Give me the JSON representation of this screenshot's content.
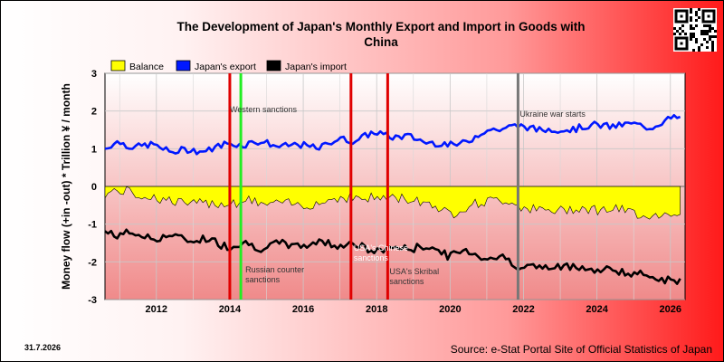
{
  "title_line1": "The Development of Japan's Monthly Export and Import in Goods with",
  "title_line2": "China",
  "date_stamp": "31.7.2026",
  "source": "Source: e-Stat Portal Site of Official Statistics of Japan",
  "qr_code": "qr-code-icon",
  "colors": {
    "balance": "#ffff00",
    "export": "#0018ff",
    "import": "#000000",
    "sanction_line": "#e00000",
    "western_line": "#22ee22",
    "war_line": "#777777",
    "plot_top": "#ffffff",
    "plot_bottom": "#f08a8a"
  },
  "chart_data": {
    "type": "line",
    "title": "The Development of Japan's Monthly Export and Import in Goods with China",
    "ylabel": "Money flow (+in -out) * Trillion ¥ / month",
    "xlabel": "",
    "xlim": [
      2010.6,
      2026.4
    ],
    "ylim": [
      -3,
      3
    ],
    "yticks": [
      3,
      2,
      1,
      0,
      -1,
      -2,
      -3
    ],
    "xticks": [
      2012,
      2014,
      2016,
      2018,
      2020,
      2022,
      2024,
      2026
    ],
    "grid": true,
    "legend_position": "top-left",
    "legend": [
      "Balance",
      "Japan's export",
      "Japan's import"
    ],
    "series": [
      {
        "name": "Japan's export",
        "keyframes": [
          [
            2010.6,
            1.0
          ],
          [
            2011.0,
            1.15
          ],
          [
            2011.5,
            1.08
          ],
          [
            2012.0,
            1.05
          ],
          [
            2012.5,
            0.95
          ],
          [
            2013.0,
            0.92
          ],
          [
            2013.5,
            1.02
          ],
          [
            2014.0,
            1.1
          ],
          [
            2014.5,
            1.18
          ],
          [
            2015.0,
            1.12
          ],
          [
            2015.5,
            1.1
          ],
          [
            2016.0,
            1.05
          ],
          [
            2016.5,
            1.08
          ],
          [
            2017.0,
            1.22
          ],
          [
            2017.5,
            1.28
          ],
          [
            2018.0,
            1.4
          ],
          [
            2018.5,
            1.35
          ],
          [
            2019.0,
            1.25
          ],
          [
            2019.5,
            1.2
          ],
          [
            2020.0,
            1.05
          ],
          [
            2020.5,
            1.25
          ],
          [
            2021.0,
            1.45
          ],
          [
            2021.5,
            1.6
          ],
          [
            2022.0,
            1.55
          ],
          [
            2022.5,
            1.55
          ],
          [
            2023.0,
            1.45
          ],
          [
            2023.5,
            1.6
          ],
          [
            2024.0,
            1.58
          ],
          [
            2024.5,
            1.65
          ],
          [
            2025.0,
            1.6
          ],
          [
            2025.5,
            1.62
          ],
          [
            2026.0,
            1.75
          ],
          [
            2026.3,
            1.85
          ]
        ]
      },
      {
        "name": "Japan's import",
        "keyframes": [
          [
            2010.6,
            -1.2
          ],
          [
            2011.0,
            -1.25
          ],
          [
            2011.5,
            -1.3
          ],
          [
            2012.0,
            -1.35
          ],
          [
            2012.5,
            -1.35
          ],
          [
            2013.0,
            -1.4
          ],
          [
            2013.5,
            -1.45
          ],
          [
            2014.0,
            -1.55
          ],
          [
            2014.5,
            -1.55
          ],
          [
            2015.0,
            -1.6
          ],
          [
            2015.5,
            -1.55
          ],
          [
            2016.0,
            -1.55
          ],
          [
            2016.5,
            -1.5
          ],
          [
            2017.0,
            -1.5
          ],
          [
            2017.5,
            -1.6
          ],
          [
            2018.0,
            -1.7
          ],
          [
            2018.5,
            -1.65
          ],
          [
            2019.0,
            -1.6
          ],
          [
            2019.5,
            -1.65
          ],
          [
            2020.0,
            -1.8
          ],
          [
            2020.5,
            -1.75
          ],
          [
            2021.0,
            -1.85
          ],
          [
            2021.5,
            -1.95
          ],
          [
            2022.0,
            -2.1
          ],
          [
            2022.5,
            -2.2
          ],
          [
            2023.0,
            -2.1
          ],
          [
            2023.5,
            -2.15
          ],
          [
            2024.0,
            -2.2
          ],
          [
            2024.5,
            -2.25
          ],
          [
            2025.0,
            -2.3
          ],
          [
            2025.5,
            -2.4
          ],
          [
            2026.0,
            -2.45
          ],
          [
            2026.3,
            -2.5
          ]
        ]
      },
      {
        "name": "Balance",
        "keyframes": [
          [
            2010.6,
            -0.2
          ],
          [
            2011.0,
            -0.1
          ],
          [
            2011.5,
            -0.22
          ],
          [
            2012.0,
            -0.3
          ],
          [
            2012.5,
            -0.4
          ],
          [
            2013.0,
            -0.48
          ],
          [
            2013.5,
            -0.43
          ],
          [
            2014.0,
            -0.45
          ],
          [
            2014.5,
            -0.37
          ],
          [
            2015.0,
            -0.48
          ],
          [
            2015.5,
            -0.45
          ],
          [
            2016.0,
            -0.5
          ],
          [
            2016.5,
            -0.42
          ],
          [
            2017.0,
            -0.28
          ],
          [
            2017.5,
            -0.32
          ],
          [
            2018.0,
            -0.3
          ],
          [
            2018.5,
            -0.3
          ],
          [
            2019.0,
            -0.35
          ],
          [
            2019.5,
            -0.45
          ],
          [
            2020.0,
            -0.75
          ],
          [
            2020.5,
            -0.5
          ],
          [
            2021.0,
            -0.4
          ],
          [
            2021.5,
            -0.35
          ],
          [
            2022.0,
            -0.55
          ],
          [
            2022.5,
            -0.65
          ],
          [
            2023.0,
            -0.65
          ],
          [
            2023.5,
            -0.55
          ],
          [
            2024.0,
            -0.62
          ],
          [
            2024.5,
            -0.6
          ],
          [
            2025.0,
            -0.7
          ],
          [
            2025.5,
            -0.78
          ],
          [
            2026.0,
            -0.7
          ],
          [
            2026.3,
            -0.65
          ]
        ]
      }
    ],
    "events": [
      {
        "label": "Western sanctions",
        "x": 2014.3,
        "color": "#22ee22"
      },
      {
        "label": "",
        "x": 2014.0,
        "color": "#e00000"
      },
      {
        "label": "Russian counter sanctions",
        "x": 2014.35,
        "color": ""
      },
      {
        "label": "USA's Chinese sanctions",
        "x": 2017.3,
        "color": "#e00000"
      },
      {
        "label": "USA's Skribal sanctions",
        "x": 2018.3,
        "color": "#e00000"
      },
      {
        "label": "Ukraine war starts",
        "x": 2021.85,
        "color": "#777777"
      }
    ]
  }
}
